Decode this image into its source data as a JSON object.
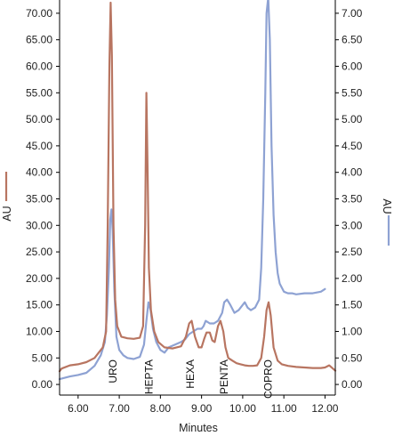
{
  "chart_data": {
    "type": "line",
    "title": "",
    "xlabel": "Minutes",
    "ylabel_left": "AU",
    "ylabel_right": "AU",
    "xlim": [
      5.55,
      12.25
    ],
    "ylim_left": [
      -2.0,
      72.5
    ],
    "ylim_right": [
      -0.2,
      7.25
    ],
    "xticks": [
      6.0,
      7.0,
      8.0,
      9.0,
      10.0,
      11.0,
      12.0
    ],
    "xtick_labels": [
      "6.00",
      "7.00",
      "8.00",
      "9.00",
      "10.00",
      "11.00",
      "12.00"
    ],
    "yticks_left": [
      0,
      5,
      10,
      15,
      20,
      25,
      30,
      35,
      40,
      45,
      50,
      55,
      60,
      65,
      70
    ],
    "ytick_labels_left": [
      "0.00",
      "5.00",
      "10.00",
      "15.00",
      "20.00",
      "25.00",
      "30.00",
      "35.00",
      "40.00",
      "45.00",
      "50.00",
      "55.00",
      "60.00",
      "65.00",
      "70.00"
    ],
    "yticks_right": [
      0,
      0.5,
      1.0,
      1.5,
      2.0,
      2.5,
      3.0,
      3.5,
      4.0,
      4.5,
      5.0,
      5.5,
      6.0,
      6.5,
      7.0
    ],
    "ytick_labels_right": [
      "0.00",
      "0.50",
      "1.00",
      "1.50",
      "2.00",
      "2.50",
      "3.00",
      "3.50",
      "4.00",
      "4.50",
      "5.00",
      "5.50",
      "6.00",
      "6.50",
      "7.00"
    ],
    "grid": false,
    "legend": "none",
    "series": [
      {
        "axis": "left",
        "color": "#b87561",
        "x": [
          5.55,
          5.6,
          5.8,
          6.0,
          6.2,
          6.4,
          6.5,
          6.6,
          6.68,
          6.72,
          6.76,
          6.79,
          6.82,
          6.86,
          6.9,
          6.95,
          7.05,
          7.2,
          7.35,
          7.5,
          7.58,
          7.63,
          7.66,
          7.69,
          7.72,
          7.77,
          7.85,
          7.95,
          8.1,
          8.3,
          8.5,
          8.62,
          8.7,
          8.76,
          8.84,
          8.93,
          9.0,
          9.06,
          9.12,
          9.2,
          9.26,
          9.32,
          9.4,
          9.46,
          9.53,
          9.58,
          9.65,
          9.75,
          9.85,
          9.95,
          10.05,
          10.15,
          10.25,
          10.35,
          10.45,
          10.52,
          10.58,
          10.63,
          10.68,
          10.75,
          10.85,
          10.95,
          11.1,
          11.3,
          11.5,
          11.7,
          11.9,
          12.0,
          12.1,
          12.25
        ],
        "y": [
          2.5,
          3.0,
          3.6,
          3.8,
          4.2,
          5.0,
          6.0,
          7.0,
          10.0,
          30.0,
          60.0,
          72.0,
          62.0,
          30.0,
          16.0,
          11.0,
          9.0,
          8.7,
          8.6,
          8.8,
          11.0,
          30.0,
          55.0,
          40.0,
          22.0,
          14.0,
          10.0,
          8.0,
          7.0,
          6.8,
          7.2,
          9.0,
          11.5,
          12.0,
          9.0,
          7.0,
          7.0,
          8.5,
          9.8,
          9.8,
          8.3,
          8.0,
          11.0,
          12.0,
          10.0,
          7.0,
          5.0,
          4.5,
          4.0,
          3.8,
          3.6,
          3.5,
          3.5,
          3.6,
          5.0,
          9.0,
          14.0,
          15.5,
          13.0,
          7.0,
          4.5,
          3.8,
          3.5,
          3.3,
          3.2,
          3.1,
          3.1,
          3.2,
          3.6,
          2.6
        ]
      },
      {
        "axis": "right",
        "color": "#8ea2d3",
        "x": [
          5.55,
          5.8,
          6.0,
          6.2,
          6.4,
          6.55,
          6.65,
          6.7,
          6.75,
          6.78,
          6.81,
          6.84,
          6.88,
          6.93,
          7.0,
          7.1,
          7.2,
          7.35,
          7.5,
          7.6,
          7.66,
          7.71,
          7.76,
          7.82,
          7.9,
          8.0,
          8.1,
          8.2,
          8.35,
          8.5,
          8.6,
          8.7,
          8.8,
          8.9,
          9.0,
          9.05,
          9.1,
          9.2,
          9.3,
          9.4,
          9.5,
          9.55,
          9.62,
          9.7,
          9.8,
          9.9,
          10.0,
          10.05,
          10.12,
          10.2,
          10.3,
          10.4,
          10.45,
          10.5,
          10.55,
          10.58,
          10.62,
          10.66,
          10.7,
          10.75,
          10.8,
          10.85,
          10.9,
          11.0,
          11.1,
          11.2,
          11.3,
          11.5,
          11.7,
          11.9,
          12.0
        ],
        "y": [
          0.1,
          0.15,
          0.18,
          0.22,
          0.35,
          0.55,
          0.8,
          1.3,
          2.2,
          3.1,
          3.3,
          2.9,
          1.8,
          0.9,
          0.65,
          0.55,
          0.5,
          0.48,
          0.52,
          0.75,
          1.2,
          1.55,
          1.4,
          1.05,
          0.8,
          0.65,
          0.6,
          0.7,
          0.75,
          0.8,
          0.85,
          0.95,
          1.0,
          1.05,
          1.05,
          1.1,
          1.2,
          1.15,
          1.15,
          1.2,
          1.35,
          1.55,
          1.6,
          1.5,
          1.35,
          1.4,
          1.5,
          1.55,
          1.45,
          1.4,
          1.45,
          1.6,
          2.2,
          3.5,
          5.5,
          7.0,
          7.3,
          6.5,
          4.5,
          3.2,
          2.5,
          2.1,
          1.9,
          1.75,
          1.72,
          1.72,
          1.7,
          1.72,
          1.72,
          1.75,
          1.8
        ]
      }
    ],
    "annotations": [
      "URO",
      "HEPTA",
      "HEXA",
      "PENTA",
      "COPRO"
    ]
  }
}
